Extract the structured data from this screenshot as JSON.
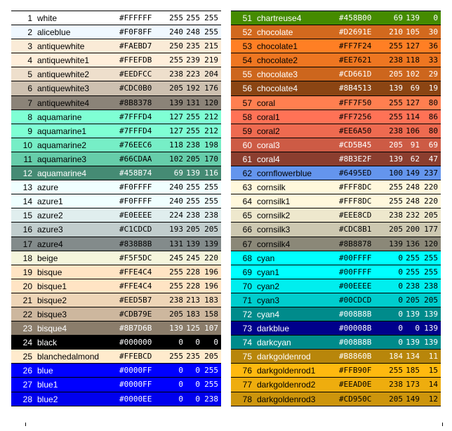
{
  "left": [
    {
      "n": "1",
      "name": "white",
      "hex": "#FFFFFF",
      "r": "255",
      "g": "255",
      "b": "255",
      "bg": "#FFFFFF",
      "fg": "#000000"
    },
    {
      "n": "2",
      "name": "aliceblue",
      "hex": "#F0F8FF",
      "r": "240",
      "g": "248",
      "b": "255",
      "bg": "#F0F8FF",
      "fg": "#000000"
    },
    {
      "n": "3",
      "name": "antiquewhite",
      "hex": "#FAEBD7",
      "r": "250",
      "g": "235",
      "b": "215",
      "bg": "#FAEBD7",
      "fg": "#000000"
    },
    {
      "n": "4",
      "name": "antiquewhite1",
      "hex": "#FFEFDB",
      "r": "255",
      "g": "239",
      "b": "219",
      "bg": "#FFEFDB",
      "fg": "#000000"
    },
    {
      "n": "5",
      "name": "antiquewhite2",
      "hex": "#EEDFCC",
      "r": "238",
      "g": "223",
      "b": "204",
      "bg": "#EEDFCC",
      "fg": "#000000"
    },
    {
      "n": "6",
      "name": "antiquewhite3",
      "hex": "#CDC0B0",
      "r": "205",
      "g": "192",
      "b": "176",
      "bg": "#CDC0B0",
      "fg": "#000000"
    },
    {
      "n": "7",
      "name": "antiquewhite4",
      "hex": "#8B8378",
      "r": "139",
      "g": "131",
      "b": "120",
      "bg": "#8B8378",
      "fg": "#000000"
    },
    {
      "n": "8",
      "name": "aquamarine",
      "hex": "#7FFFD4",
      "r": "127",
      "g": "255",
      "b": "212",
      "bg": "#7FFFD4",
      "fg": "#000000"
    },
    {
      "n": "9",
      "name": "aquamarine1",
      "hex": "#7FFFD4",
      "r": "127",
      "g": "255",
      "b": "212",
      "bg": "#7FFFD4",
      "fg": "#000000"
    },
    {
      "n": "10",
      "name": "aquamarine2",
      "hex": "#76EEC6",
      "r": "118",
      "g": "238",
      "b": "198",
      "bg": "#76EEC6",
      "fg": "#000000"
    },
    {
      "n": "11",
      "name": "aquamarine3",
      "hex": "#66CDAA",
      "r": "102",
      "g": "205",
      "b": "170",
      "bg": "#66CDAA",
      "fg": "#000000"
    },
    {
      "n": "12",
      "name": "aquamarine4",
      "hex": "#458B74",
      "r": "69",
      "g": "139",
      "b": "116",
      "bg": "#458B74",
      "fg": "#FFFFFF"
    },
    {
      "n": "13",
      "name": "azure",
      "hex": "#F0FFFF",
      "r": "240",
      "g": "255",
      "b": "255",
      "bg": "#F0FFFF",
      "fg": "#000000"
    },
    {
      "n": "14",
      "name": "azure1",
      "hex": "#F0FFFF",
      "r": "240",
      "g": "255",
      "b": "255",
      "bg": "#F0FFFF",
      "fg": "#000000"
    },
    {
      "n": "15",
      "name": "azure2",
      "hex": "#E0EEEE",
      "r": "224",
      "g": "238",
      "b": "238",
      "bg": "#E0EEEE",
      "fg": "#000000"
    },
    {
      "n": "16",
      "name": "azure3",
      "hex": "#C1CDCD",
      "r": "193",
      "g": "205",
      "b": "205",
      "bg": "#C1CDCD",
      "fg": "#000000"
    },
    {
      "n": "17",
      "name": "azure4",
      "hex": "#838B8B",
      "r": "131",
      "g": "139",
      "b": "139",
      "bg": "#838B8B",
      "fg": "#000000"
    },
    {
      "n": "18",
      "name": "beige",
      "hex": "#F5F5DC",
      "r": "245",
      "g": "245",
      "b": "220",
      "bg": "#F5F5DC",
      "fg": "#000000"
    },
    {
      "n": "19",
      "name": "bisque",
      "hex": "#FFE4C4",
      "r": "255",
      "g": "228",
      "b": "196",
      "bg": "#FFE4C4",
      "fg": "#000000"
    },
    {
      "n": "20",
      "name": "bisque1",
      "hex": "#FFE4C4",
      "r": "255",
      "g": "228",
      "b": "196",
      "bg": "#FFE4C4",
      "fg": "#000000"
    },
    {
      "n": "21",
      "name": "bisque2",
      "hex": "#EED5B7",
      "r": "238",
      "g": "213",
      "b": "183",
      "bg": "#EED5B7",
      "fg": "#000000"
    },
    {
      "n": "22",
      "name": "bisque3",
      "hex": "#CDB79E",
      "r": "205",
      "g": "183",
      "b": "158",
      "bg": "#CDB79E",
      "fg": "#000000"
    },
    {
      "n": "23",
      "name": "bisque4",
      "hex": "#8B7D6B",
      "r": "139",
      "g": "125",
      "b": "107",
      "bg": "#8B7D6B",
      "fg": "#FFFFFF"
    },
    {
      "n": "24",
      "name": "black",
      "hex": "#000000",
      "r": "0",
      "g": "0",
      "b": "0",
      "bg": "#000000",
      "fg": "#FFFFFF"
    },
    {
      "n": "25",
      "name": "blanchedalmond",
      "hex": "#FFEBCD",
      "r": "255",
      "g": "235",
      "b": "205",
      "bg": "#FFEBCD",
      "fg": "#000000"
    },
    {
      "n": "26",
      "name": "blue",
      "hex": "#0000FF",
      "r": "0",
      "g": "0",
      "b": "255",
      "bg": "#0000FF",
      "fg": "#FFFFFF"
    },
    {
      "n": "27",
      "name": "blue1",
      "hex": "#0000FF",
      "r": "0",
      "g": "0",
      "b": "255",
      "bg": "#0000FF",
      "fg": "#FFFFFF"
    },
    {
      "n": "28",
      "name": "blue2",
      "hex": "#0000EE",
      "r": "0",
      "g": "0",
      "b": "238",
      "bg": "#0000EE",
      "fg": "#FFFFFF"
    }
  ],
  "right": [
    {
      "n": "51",
      "name": "chartreuse4",
      "hex": "#458B00",
      "r": "69",
      "g": "139",
      "b": "0",
      "bg": "#458B00",
      "fg": "#FFFFFF"
    },
    {
      "n": "52",
      "name": "chocolate",
      "hex": "#D2691E",
      "r": "210",
      "g": "105",
      "b": "30",
      "bg": "#D2691E",
      "fg": "#FFFFFF"
    },
    {
      "n": "53",
      "name": "chocolate1",
      "hex": "#FF7F24",
      "r": "255",
      "g": "127",
      "b": "36",
      "bg": "#FF7F24",
      "fg": "#000000"
    },
    {
      "n": "54",
      "name": "chocolate2",
      "hex": "#EE7621",
      "r": "238",
      "g": "118",
      "b": "33",
      "bg": "#EE7621",
      "fg": "#000000"
    },
    {
      "n": "55",
      "name": "chocolate3",
      "hex": "#CD661D",
      "r": "205",
      "g": "102",
      "b": "29",
      "bg": "#CD661D",
      "fg": "#FFFFFF"
    },
    {
      "n": "56",
      "name": "chocolate4",
      "hex": "#8B4513",
      "r": "139",
      "g": "69",
      "b": "19",
      "bg": "#8B4513",
      "fg": "#FFFFFF"
    },
    {
      "n": "57",
      "name": "coral",
      "hex": "#FF7F50",
      "r": "255",
      "g": "127",
      "b": "80",
      "bg": "#FF7F50",
      "fg": "#000000"
    },
    {
      "n": "58",
      "name": "coral1",
      "hex": "#FF7256",
      "r": "255",
      "g": "114",
      "b": "86",
      "bg": "#FF7256",
      "fg": "#000000"
    },
    {
      "n": "59",
      "name": "coral2",
      "hex": "#EE6A50",
      "r": "238",
      "g": "106",
      "b": "80",
      "bg": "#EE6A50",
      "fg": "#000000"
    },
    {
      "n": "60",
      "name": "coral3",
      "hex": "#CD5B45",
      "r": "205",
      "g": "91",
      "b": "69",
      "bg": "#CD5B45",
      "fg": "#FFFFFF"
    },
    {
      "n": "61",
      "name": "coral4",
      "hex": "#8B3E2F",
      "r": "139",
      "g": "62",
      "b": "47",
      "bg": "#8B3E2F",
      "fg": "#FFFFFF"
    },
    {
      "n": "62",
      "name": "cornflowerblue",
      "hex": "#6495ED",
      "r": "100",
      "g": "149",
      "b": "237",
      "bg": "#6495ED",
      "fg": "#000000"
    },
    {
      "n": "63",
      "name": "cornsilk",
      "hex": "#FFF8DC",
      "r": "255",
      "g": "248",
      "b": "220",
      "bg": "#FFF8DC",
      "fg": "#000000"
    },
    {
      "n": "64",
      "name": "cornsilk1",
      "hex": "#FFF8DC",
      "r": "255",
      "g": "248",
      "b": "220",
      "bg": "#FFF8DC",
      "fg": "#000000"
    },
    {
      "n": "65",
      "name": "cornsilk2",
      "hex": "#EEE8CD",
      "r": "238",
      "g": "232",
      "b": "205",
      "bg": "#EEE8CD",
      "fg": "#000000"
    },
    {
      "n": "66",
      "name": "cornsilk3",
      "hex": "#CDC8B1",
      "r": "205",
      "g": "200",
      "b": "177",
      "bg": "#CDC8B1",
      "fg": "#000000"
    },
    {
      "n": "67",
      "name": "cornsilk4",
      "hex": "#8B8878",
      "r": "139",
      "g": "136",
      "b": "120",
      "bg": "#8B8878",
      "fg": "#000000"
    },
    {
      "n": "68",
      "name": "cyan",
      "hex": "#00FFFF",
      "r": "0",
      "g": "255",
      "b": "255",
      "bg": "#00FFFF",
      "fg": "#000000"
    },
    {
      "n": "69",
      "name": "cyan1",
      "hex": "#00FFFF",
      "r": "0",
      "g": "255",
      "b": "255",
      "bg": "#00FFFF",
      "fg": "#000000"
    },
    {
      "n": "70",
      "name": "cyan2",
      "hex": "#00EEEE",
      "r": "0",
      "g": "238",
      "b": "238",
      "bg": "#00EEEE",
      "fg": "#000000"
    },
    {
      "n": "71",
      "name": "cyan3",
      "hex": "#00CDCD",
      "r": "0",
      "g": "205",
      "b": "205",
      "bg": "#00CDCD",
      "fg": "#000000"
    },
    {
      "n": "72",
      "name": "cyan4",
      "hex": "#008B8B",
      "r": "0",
      "g": "139",
      "b": "139",
      "bg": "#008B8B",
      "fg": "#FFFFFF"
    },
    {
      "n": "73",
      "name": "darkblue",
      "hex": "#00008B",
      "r": "0",
      "g": "0",
      "b": "139",
      "bg": "#00008B",
      "fg": "#FFFFFF"
    },
    {
      "n": "74",
      "name": "darkcyan",
      "hex": "#008B8B",
      "r": "0",
      "g": "139",
      "b": "139",
      "bg": "#008B8B",
      "fg": "#FFFFFF"
    },
    {
      "n": "75",
      "name": "darkgoldenrod",
      "hex": "#B8860B",
      "r": "184",
      "g": "134",
      "b": "11",
      "bg": "#B8860B",
      "fg": "#FFFFFF"
    },
    {
      "n": "76",
      "name": "darkgoldenrod1",
      "hex": "#FFB90F",
      "r": "255",
      "g": "185",
      "b": "15",
      "bg": "#FFB90F",
      "fg": "#000000"
    },
    {
      "n": "77",
      "name": "darkgoldenrod2",
      "hex": "#EEAD0E",
      "r": "238",
      "g": "173",
      "b": "14",
      "bg": "#EEAD0E",
      "fg": "#000000"
    },
    {
      "n": "78",
      "name": "darkgoldenrod3",
      "hex": "#CD950C",
      "r": "205",
      "g": "149",
      "b": "12",
      "bg": "#CD950C",
      "fg": "#000000"
    }
  ]
}
